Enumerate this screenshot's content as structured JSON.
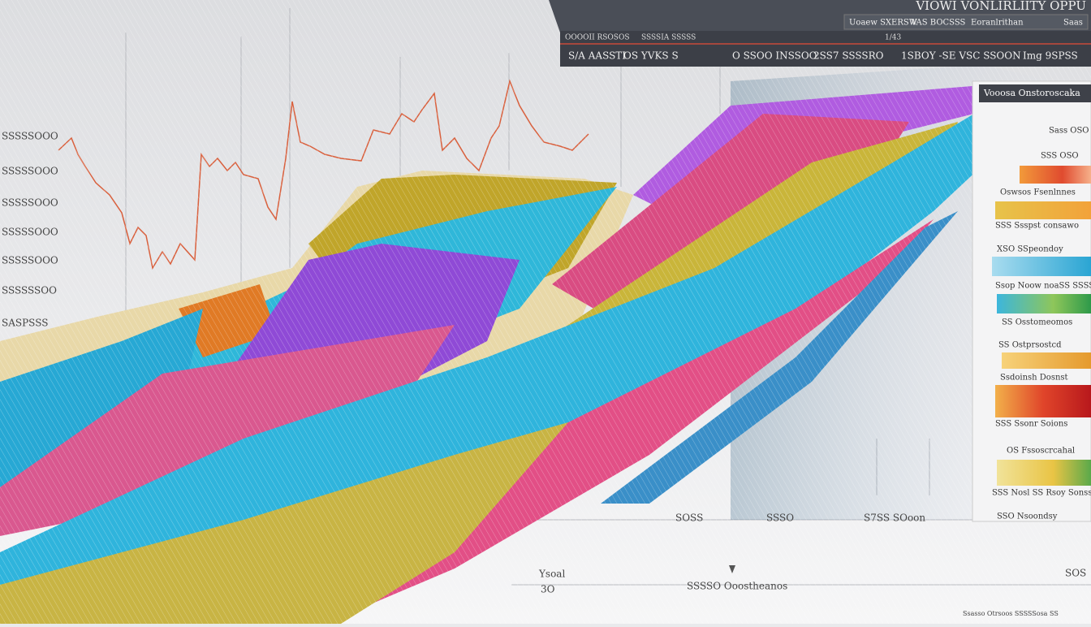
{
  "header": {
    "title": "VIOWI VONLIRLIITY OPPU",
    "tabs": [
      "Uoaew SXERSW",
      "VAS BOCSSS",
      "Eoranlrithan",
      "Saas"
    ],
    "sub": [
      "OOOOII RSOSOS",
      "SSSSIA SSSSS",
      "1/43"
    ],
    "stats": [
      "S/A AASSTI",
      "OS YVKS S",
      "O SSOO INSSOO",
      "2SS7 SSSSRO",
      "1SBOY -SE VSC SSOON",
      "Img 9SPSS"
    ]
  },
  "y_labels": [
    "SSSSSOOO",
    "SSSSSOOO",
    "SSSSSOOO",
    "SSSSSOOO",
    "SSSSSOOO",
    "SSSSSSOO",
    "SASPSSS"
  ],
  "sidebar": {
    "title": "Vooosa Onstoroscaka",
    "items": [
      "Sass OSO",
      "SSS OSO",
      "Oswsos Fsenlnnes",
      "SSS Ssspst consawo",
      "XSO SSpeondoy",
      "Ssop Noow noaSS SSSS",
      "SS Osstomeomos",
      "SS Ostprsostcd",
      "Ssdoinsh Dosnst",
      "SSS Ssonr Soions",
      "OS Fssoscrcahal",
      "SSS Nosl SS Rsoy Sonss",
      "SSO Nsoondsy"
    ]
  },
  "bottom": {
    "labels": [
      "SOSS",
      "SSSO",
      "S7SS SOoon",
      "Ysoal",
      "3O",
      "SSSSO Ooostheanos",
      "SOS"
    ],
    "footnote": "Ssasso Otrsoos SSSSSosa SS"
  }
}
